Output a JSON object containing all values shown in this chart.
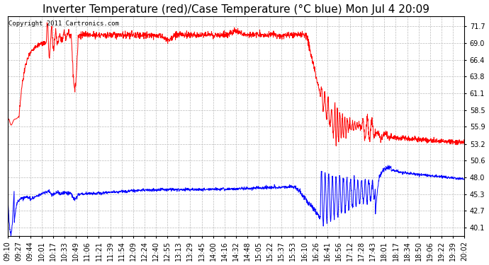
{
  "title": "Inverter Temperature (red)/Case Temperature (°C blue) Mon Jul 4 20:09",
  "copyright": "Copyright 2011 Cartronics.com",
  "background_color": "#ffffff",
  "plot_bg_color": "#ffffff",
  "grid_color": "#bbbbbb",
  "y_min": 38.8,
  "y_max": 73.2,
  "yticks": [
    40.1,
    42.7,
    45.3,
    48.0,
    50.6,
    53.2,
    55.9,
    58.5,
    61.1,
    63.8,
    66.4,
    69.0,
    71.7
  ],
  "x_labels": [
    "09:10",
    "09:27",
    "09:44",
    "10:01",
    "10:17",
    "10:33",
    "10:49",
    "11:06",
    "11:21",
    "11:39",
    "11:54",
    "12:09",
    "12:24",
    "12:40",
    "12:55",
    "13:13",
    "13:29",
    "13:45",
    "14:00",
    "14:16",
    "14:32",
    "14:48",
    "15:05",
    "15:22",
    "15:37",
    "15:53",
    "16:10",
    "16:26",
    "16:41",
    "16:56",
    "17:12",
    "17:28",
    "17:43",
    "18:01",
    "18:17",
    "18:34",
    "18:50",
    "19:06",
    "19:22",
    "19:39",
    "20:02"
  ],
  "red_line_color": "#ff0000",
  "blue_line_color": "#0000ff",
  "title_fontsize": 11,
  "tick_fontsize": 7,
  "copyright_fontsize": 6.5
}
